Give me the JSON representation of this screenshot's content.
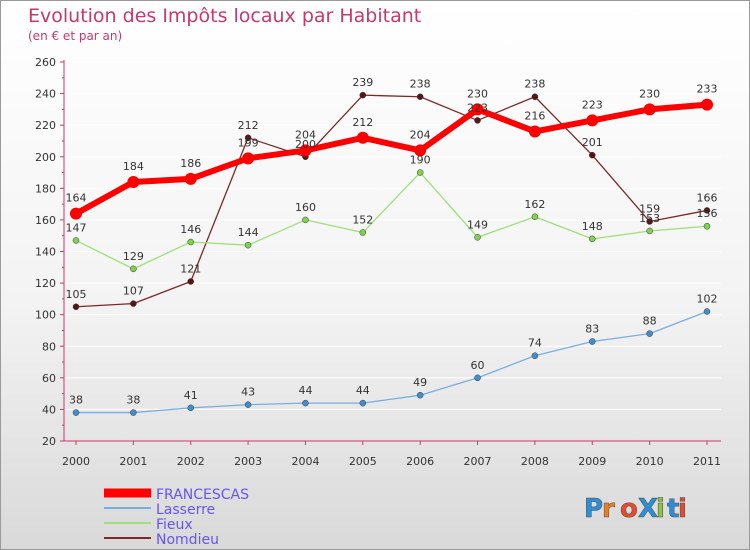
{
  "chart_data": {
    "type": "line",
    "title": "Evolution des Impôts locaux par Habitant",
    "subtitle": "(en € et par an)",
    "xlabel": "",
    "ylabel": "",
    "ylim": [
      20,
      260
    ],
    "yticks": [
      20,
      40,
      60,
      80,
      100,
      120,
      140,
      160,
      180,
      200,
      220,
      240,
      260
    ],
    "categories": [
      "2000",
      "2001",
      "2002",
      "2003",
      "2004",
      "2005",
      "2006",
      "2007",
      "2008",
      "2009",
      "2010",
      "2011"
    ],
    "grid": "horizontal",
    "legend_position": "bottom-left",
    "series": [
      {
        "name": "Nomdieu",
        "color": "#7a2a2a",
        "marker": "#5a1414",
        "values": [
          105,
          107,
          121,
          212,
          200,
          239,
          238,
          223,
          238,
          201,
          159,
          166
        ]
      },
      {
        "name": "Fieux",
        "color": "#9ee07a",
        "marker": "#7cd44a",
        "values": [
          147,
          129,
          146,
          144,
          160,
          152,
          190,
          149,
          162,
          148,
          153,
          156
        ]
      },
      {
        "name": "Lasserre",
        "color": "#7aaee0",
        "marker": "#3f8fd0",
        "values": [
          38,
          38,
          41,
          43,
          44,
          44,
          49,
          60,
          74,
          83,
          88,
          102
        ]
      },
      {
        "name": "FRANCESCAS",
        "color": "#ff0000",
        "marker": "#ff0000",
        "values": [
          164,
          184,
          186,
          199,
          204,
          212,
          204,
          230,
          216,
          223,
          230,
          233
        ]
      }
    ]
  },
  "brand": {
    "text": "ProXiti",
    "colors": [
      "#2a8fd6",
      "#f07d1a",
      "#e84a2a",
      "#2a8fd6",
      "#8cc63e",
      "#2a8fd6",
      "#e84a2a"
    ]
  }
}
